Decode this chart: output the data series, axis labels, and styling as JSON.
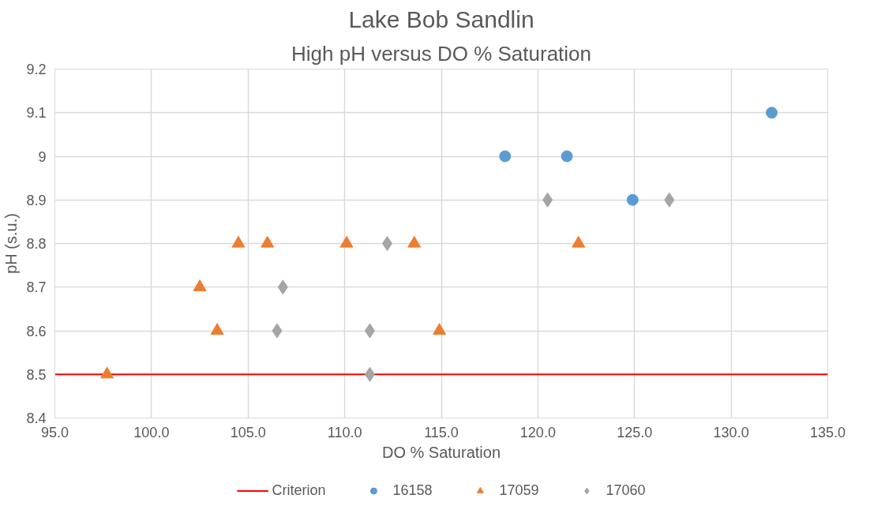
{
  "chart_data": {
    "type": "scatter",
    "title": "Lake Bob Sandlin",
    "subtitle": "High pH versus DO % Saturation",
    "xlabel": "DO % Saturation",
    "ylabel": "pH (s.u.)",
    "series": [
      {
        "name": "16158",
        "color": "#5b9bd5",
        "marker": "circle",
        "x": [
          118.3,
          121.5,
          124.9,
          132.1
        ],
        "values": [
          9.0,
          9.0,
          8.9,
          9.1
        ]
      },
      {
        "name": "17059",
        "color": "#ed7d31",
        "marker": "triangle",
        "x": [
          97.7,
          102.5,
          103.4,
          104.5,
          106.0,
          110.1,
          113.6,
          114.9,
          122.1
        ],
        "values": [
          8.5,
          8.7,
          8.6,
          8.8,
          8.8,
          8.8,
          8.8,
          8.6,
          8.8
        ]
      },
      {
        "name": "17060",
        "color": "#a5a5a5",
        "marker": "diamond",
        "x": [
          106.5,
          106.8,
          111.3,
          111.3,
          112.2,
          120.5,
          126.8
        ],
        "values": [
          8.6,
          8.7,
          8.5,
          8.6,
          8.8,
          8.9,
          8.9
        ]
      }
    ],
    "ref_lines": [
      {
        "axis": "y",
        "value": 8.5,
        "label": "Criterion",
        "color": "#ff0000"
      }
    ],
    "xlim": [
      95,
      135
    ],
    "ylim": [
      8.4,
      9.2
    ],
    "xticks": [
      {
        "value": 95,
        "label": "95.0"
      },
      {
        "value": 100,
        "label": "100.0"
      },
      {
        "value": 105,
        "label": "105.0"
      },
      {
        "value": 110,
        "label": "110.0"
      },
      {
        "value": 115,
        "label": "115.0"
      },
      {
        "value": 120,
        "label": "120.0"
      },
      {
        "value": 125,
        "label": "125.0"
      },
      {
        "value": 130,
        "label": "130.0"
      },
      {
        "value": 135,
        "label": "135.0"
      }
    ],
    "yticks": [
      8.4,
      8.5,
      8.6,
      8.7,
      8.8,
      8.9,
      9,
      9.1,
      9.2
    ],
    "grid": true,
    "legend": "bottom"
  }
}
